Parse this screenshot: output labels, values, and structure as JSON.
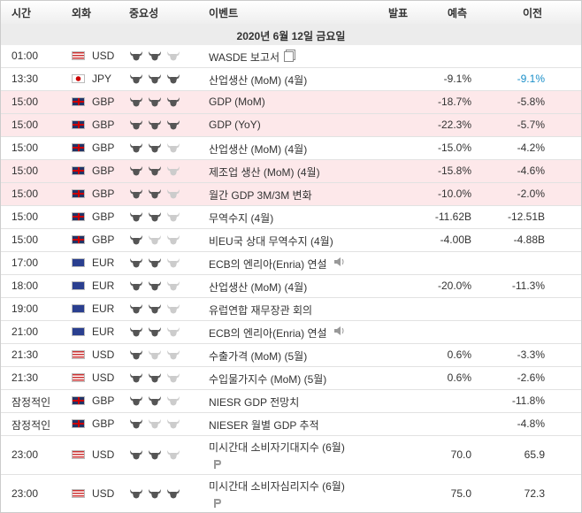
{
  "header": {
    "columns": [
      "시간",
      "외화",
      "중요성",
      "이벤트",
      "발표",
      "예측",
      "이전"
    ]
  },
  "date": "2020년 6월 12일 금요일",
  "rows": [
    {
      "time": "01:00",
      "currency": "USD",
      "importance": 2,
      "event": "WASDE 보고서"
    },
    {
      "time": "13:30",
      "currency": "JPY",
      "importance": 3,
      "event": "산업생산 (MoM) (4월)",
      "forecast": "-9.1%",
      "previous": "-9.1%"
    },
    {
      "time": "15:00",
      "currency": "GBP",
      "importance": 3,
      "event": "GDP (MoM)",
      "forecast": "-18.7%",
      "previous": "-5.8%"
    },
    {
      "time": "15:00",
      "currency": "GBP",
      "importance": 3,
      "event": "GDP (YoY)",
      "forecast": "-22.3%",
      "previous": "-5.7%"
    },
    {
      "time": "15:00",
      "currency": "GBP",
      "importance": 2,
      "event": "산업생산 (MoM) (4월)",
      "forecast": "-15.0%",
      "previous": "-4.2%"
    },
    {
      "time": "15:00",
      "currency": "GBP",
      "importance": 2,
      "event": "제조업 생산 (MoM) (4월)",
      "forecast": "-15.8%",
      "previous": "-4.6%"
    },
    {
      "time": "15:00",
      "currency": "GBP",
      "importance": 2,
      "event": "월간 GDP 3M/3M 변화",
      "forecast": "-10.0%",
      "previous": "-2.0%"
    },
    {
      "time": "15:00",
      "currency": "GBP",
      "importance": 2,
      "event": "무역수지 (4월)",
      "forecast": "-11.62B",
      "previous": "-12.51B"
    },
    {
      "time": "15:00",
      "currency": "GBP",
      "importance": 1,
      "event": "비EU국 상대 무역수지 (4월)",
      "forecast": "-4.00B",
      "previous": "-4.88B"
    },
    {
      "time": "17:00",
      "currency": "EUR",
      "importance": 2,
      "event": "ECB의 엔리아(Enria) 연설"
    },
    {
      "time": "18:00",
      "currency": "EUR",
      "importance": 2,
      "event": "산업생산 (MoM) (4월)",
      "forecast": "-20.0%",
      "previous": "-11.3%"
    },
    {
      "time": "19:00",
      "currency": "EUR",
      "importance": 2,
      "event": "유럽연합 재무장관 회의"
    },
    {
      "time": "21:00",
      "currency": "EUR",
      "importance": 2,
      "event": "ECB의 엔리아(Enria) 연설"
    },
    {
      "time": "21:30",
      "currency": "USD",
      "importance": 1,
      "event": "수출가격 (MoM) (5월)",
      "forecast": "0.6%",
      "previous": "-3.3%"
    },
    {
      "time": "21:30",
      "currency": "USD",
      "importance": 2,
      "event": "수입물가지수 (MoM) (5월)",
      "forecast": "0.6%",
      "previous": "-2.6%"
    },
    {
      "time": "잠정적인",
      "currency": "GBP",
      "importance": 2,
      "event": "NIESR GDP 전망치",
      "previous": "-11.8%"
    },
    {
      "time": "잠정적인",
      "currency": "GBP",
      "importance": 1,
      "event": "NIESER 월별 GDP 추적",
      "previous": "-4.8%"
    },
    {
      "time": "23:00",
      "currency": "USD",
      "importance": 2,
      "event": "미시간대 소비자기대지수 (6월)",
      "forecast": "70.0",
      "previous": "65.9"
    },
    {
      "time": "23:00",
      "currency": "USD",
      "importance": 3,
      "event": "미시간대 소비자심리지수 (6월)",
      "forecast": "75.0",
      "previous": "72.3"
    }
  ]
}
